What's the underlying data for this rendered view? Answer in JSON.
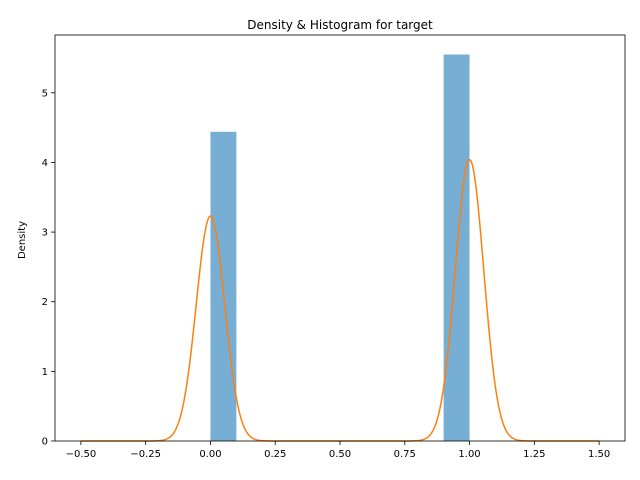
{
  "chart_data": {
    "type": "bar",
    "title": "Density & Histogram for target",
    "xlabel": "",
    "ylabel": "Density",
    "xlim": [
      -0.6,
      1.6
    ],
    "ylim": [
      0,
      5.83
    ],
    "grid": false,
    "x_ticks": [
      -0.5,
      -0.25,
      0.0,
      0.25,
      0.5,
      0.75,
      1.0,
      1.25,
      1.5
    ],
    "x_tick_labels": [
      "−0.50",
      "−0.25",
      "0.00",
      "0.25",
      "0.50",
      "0.75",
      "1.00",
      "1.25",
      "1.50"
    ],
    "y_ticks": [
      0,
      1,
      2,
      3,
      4,
      5
    ],
    "y_tick_labels": [
      "0",
      "1",
      "2",
      "3",
      "4",
      "5"
    ],
    "histogram": {
      "color": "#77aed3",
      "bins": [
        {
          "x0": 0.0,
          "x1": 0.1,
          "density": 4.44
        },
        {
          "x0": 0.9,
          "x1": 1.0,
          "density": 5.55
        }
      ]
    },
    "density_curve": {
      "color": "#ff7f0e",
      "x_range": [
        -0.5,
        1.5
      ],
      "components": [
        {
          "mean": 0.0,
          "sd": 0.055,
          "peak": 3.23
        },
        {
          "mean": 1.0,
          "sd": 0.055,
          "peak": 4.04
        }
      ]
    }
  }
}
